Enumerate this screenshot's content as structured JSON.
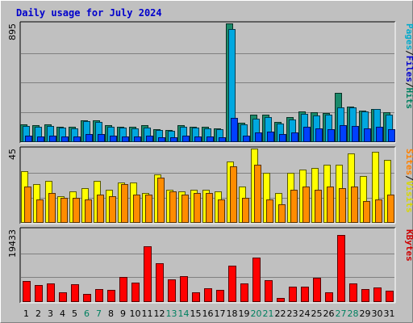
{
  "chart_data": {
    "type": "bar",
    "title": "Daily usage for July 2024",
    "categories": [
      "1",
      "2",
      "3",
      "4",
      "5",
      "6",
      "7",
      "8",
      "9",
      "10",
      "11",
      "12",
      "13",
      "14",
      "15",
      "16",
      "17",
      "18",
      "19",
      "20",
      "21",
      "22",
      "23",
      "24",
      "25",
      "26",
      "27",
      "28",
      "29",
      "30",
      "31"
    ],
    "weekend_days": [
      "6",
      "7",
      "13",
      "14",
      "20",
      "21",
      "27",
      "28"
    ],
    "panels": [
      {
        "name": "pages-files-hits",
        "ymax_label": "895",
        "ymax": 895,
        "side_labels": [
          {
            "text": "Pages",
            "color": "#00aacc"
          },
          {
            "text": "/",
            "color": "#000000"
          },
          {
            "text": "Files",
            "color": "#0000cc"
          },
          {
            "text": "/",
            "color": "#000000"
          },
          {
            "text": "Hits",
            "color": "#008060"
          }
        ],
        "series": [
          {
            "name": "Hits",
            "color": "#1a8a6a",
            "values": [
              130,
              120,
              128,
              110,
              108,
              160,
              158,
              122,
              112,
              108,
              122,
              90,
              88,
              120,
              112,
              108,
              100,
              895,
              142,
              200,
              200,
              150,
              185,
              228,
              220,
              215,
              370,
              265,
              230,
              245,
              220
            ]
          },
          {
            "name": "Files",
            "color": "#00a8e0",
            "values": [
              118,
              112,
              118,
              102,
              100,
              152,
              150,
              112,
              104,
              100,
              104,
              84,
              82,
              112,
              104,
              100,
              92,
              855,
              130,
              172,
              185,
              135,
              168,
              208,
              195,
              200,
              260,
              255,
              225,
              245,
              205
            ]
          },
          {
            "name": "Pages",
            "color": "#0040ff",
            "values": [
              40,
              38,
              42,
              35,
              34,
              55,
              54,
              40,
              37,
              35,
              40,
              30,
              29,
              40,
              37,
              36,
              33,
              175,
              45,
              70,
              75,
              55,
              65,
              110,
              100,
              95,
              120,
              115,
              100,
              110,
              95
            ]
          }
        ]
      },
      {
        "name": "visits-sites",
        "ymax_label": "45",
        "ymax": 45,
        "side_labels": [
          {
            "text": "Sites",
            "color": "#ff8000"
          },
          {
            "text": "/",
            "color": "#000000"
          },
          {
            "text": "Visits",
            "color": "#d8d800"
          }
        ],
        "series": [
          {
            "name": "Visits",
            "color": "#ffff00",
            "values": [
              31,
              23,
              25,
              16,
              19,
              21,
              25,
              20,
              24,
              24,
              18,
              29,
              20,
              19,
              20,
              20,
              19,
              37,
              22,
              45,
              30,
              18,
              30,
              32,
              33,
              35,
              35,
              42,
              28,
              43,
              38
            ]
          },
          {
            "name": "Sites",
            "color": "#ff8c00",
            "values": [
              22,
              14,
              18,
              15,
              15,
              14,
              17,
              16,
              23,
              17,
              17,
              27,
              19,
              17,
              18,
              18,
              14,
              34,
              15,
              35,
              14,
              11,
              20,
              22,
              20,
              22,
              21,
              22,
              13,
              14,
              17
            ]
          }
        ]
      },
      {
        "name": "kbytes",
        "ymax_label": "19433",
        "ymax": 19433,
        "side_labels": [
          {
            "text": "KBytes",
            "color": "#cc0000"
          }
        ],
        "series": [
          {
            "name": "KBytes",
            "color": "#ff0000",
            "values": [
              5400,
              4300,
              4900,
              2400,
              4500,
              1900,
              3200,
              3100,
              6500,
              5000,
              14800,
              10200,
              5800,
              6800,
              2300,
              3400,
              3000,
              9700,
              4700,
              11800,
              5700,
              900,
              4000,
              3900,
              6300,
              2300,
              18000,
              4800,
              3200,
              3800,
              2900
            ]
          }
        ]
      }
    ]
  }
}
